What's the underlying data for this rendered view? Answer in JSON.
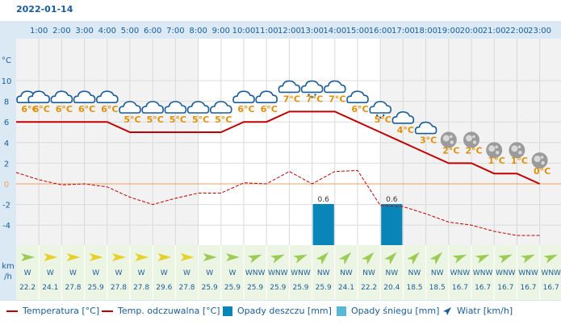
{
  "date": "2022-01-14",
  "chart_data": {
    "type": "line",
    "hours": [
      "1:00",
      "2:00",
      "3:00",
      "4:00",
      "5:00",
      "6:00",
      "7:00",
      "8:00",
      "9:00",
      "10:00",
      "11:00",
      "12:00",
      "13:00",
      "14:00",
      "15:00",
      "16:00",
      "17:00",
      "18:00",
      "19:00",
      "20:00",
      "21:00",
      "22:00",
      "23:00"
    ],
    "y_unit": "°C",
    "y_ticks": [
      10,
      8,
      6,
      4,
      2,
      0,
      -2,
      -4
    ],
    "ylim": [
      -6,
      12
    ],
    "temperature": [
      6,
      6,
      6,
      6,
      6,
      5,
      5,
      5,
      5,
      5,
      6,
      6,
      7,
      7,
      7,
      6,
      5,
      4,
      3,
      2,
      2,
      1,
      1,
      0
    ],
    "temp_labels": [
      "6°C",
      "6°C",
      "6°C",
      "6°C",
      "6°C",
      "5°C",
      "5°C",
      "5°C",
      "5°C",
      "5°C",
      "6°C",
      "6°C",
      "7°C",
      "7°C",
      "7°C",
      "6°C",
      "5°C",
      "4°C",
      "3°C",
      "2°C",
      "2°C",
      "1°C",
      "1°C",
      "0°C"
    ],
    "feels_like": [
      1.1,
      0.4,
      -0.1,
      0.0,
      -0.3,
      -1.3,
      -2.0,
      -1.4,
      -0.9,
      -0.9,
      0.1,
      0.0,
      1.2,
      0.0,
      1.2,
      1.3,
      -2.1,
      -2.2,
      -2.9,
      -3.7,
      -4.0,
      -4.6,
      -5.0,
      -5.0
    ],
    "rain": [
      0,
      0,
      0,
      0,
      0,
      0,
      0,
      0,
      0,
      0,
      0,
      0,
      0,
      0.6,
      0,
      0,
      0.6,
      0,
      0,
      0,
      0,
      0,
      0,
      0
    ],
    "rain_labels": [
      "",
      "",
      "",
      "",
      "",
      "",
      "",
      "",
      "",
      "",
      "",
      "",
      "",
      "0.6",
      "",
      "",
      "0.6",
      "",
      "",
      "",
      "",
      "",
      "",
      ""
    ],
    "snow": [
      0,
      0,
      0,
      0,
      0,
      0,
      0,
      0,
      0,
      0,
      0,
      0,
      0,
      0,
      0,
      0,
      0,
      0,
      0,
      0,
      0,
      0,
      0,
      0
    ],
    "icons": [
      "cloud",
      "cloud",
      "cloud",
      "cloud",
      "cloud",
      "cloud",
      "cloud",
      "cloud",
      "cloud",
      "cloud",
      "cloud",
      "cloud",
      "cloud",
      "cloud-snow",
      "cloud",
      "cloud",
      "cloud-snow",
      "cloud",
      "cloud",
      "moon",
      "moon",
      "moon",
      "moon",
      "moon"
    ],
    "wind_dir": [
      "W",
      "W",
      "W",
      "W",
      "W",
      "W",
      "W",
      "W",
      "W",
      "W",
      "WNW",
      "WNW",
      "WNW",
      "NW",
      "NW",
      "NW",
      "NW",
      "NW",
      "NW",
      "WNW",
      "WNW",
      "WNW",
      "WNW",
      "WNW"
    ],
    "wind_speed": [
      "22.2",
      "24.1",
      "27.8",
      "25.9",
      "27.8",
      "27.8",
      "29.6",
      "27.8",
      "25.9",
      "25.9",
      "25.9",
      "25.9",
      "25.9",
      "25.9",
      "24.1",
      "22.2",
      "20.4",
      "18.5",
      "18.5",
      "16.7",
      "16.7",
      "16.7",
      "16.7",
      "16.7"
    ],
    "wind_unit_top": "km",
    "wind_unit_bottom": "/h"
  },
  "legend": {
    "temperature": "Temperatura [°C]",
    "feels_like": "Temp. odczuwalna [°C]",
    "rain": "Opady deszczu [mm]",
    "snow": "Opady śniegu [mm]",
    "wind": "Wiatr [km/h]"
  },
  "colors": {
    "temperature": "#c00000",
    "feels_like": "#c00000",
    "rain": "#0a85b8",
    "snow": "#57b9d6",
    "label_orange": "#e0900a",
    "axis_blue": "#1a5c99",
    "header_bg": "#dbe9f5",
    "zero_line": "#f0a060",
    "arrow_yellow": "#e8d02a",
    "arrow_green": "#9ccc55"
  }
}
